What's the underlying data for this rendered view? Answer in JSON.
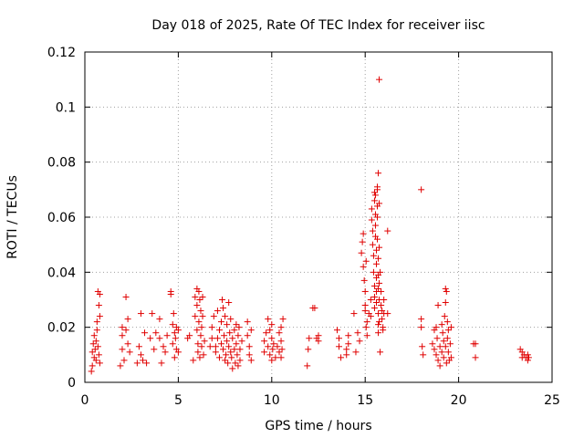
{
  "chart_data": {
    "type": "scatter",
    "title": "Day 018 of 2025, Rate Of TEC Index for receiver iisc",
    "xlabel": "GPS time / hours",
    "ylabel": "ROTI / TECUs",
    "xlim": [
      0,
      25
    ],
    "ylim": [
      0,
      0.12
    ],
    "xticks": [
      0,
      5,
      10,
      15,
      20,
      25
    ],
    "xtick_labels": [
      "0",
      "5",
      "10",
      "15",
      "20",
      "25"
    ],
    "yticks": [
      0,
      0.02,
      0.04,
      0.06,
      0.08,
      0.1,
      0.12
    ],
    "ytick_labels": [
      "0",
      "0.02",
      "0.04",
      "0.06",
      "0.08",
      "0.1",
      "0.12"
    ],
    "grid": true,
    "marker": "+",
    "color": "#e00000",
    "series": [
      {
        "points": [
          [
            0.35,
            0.004
          ],
          [
            0.4,
            0.006
          ],
          [
            0.4,
            0.011
          ],
          [
            0.45,
            0.014
          ],
          [
            0.5,
            0.009
          ],
          [
            0.5,
            0.017
          ],
          [
            0.55,
            0.012
          ],
          [
            0.6,
            0.008
          ],
          [
            0.6,
            0.015
          ],
          [
            0.65,
            0.019
          ],
          [
            0.65,
            0.022
          ],
          [
            0.7,
            0.013
          ],
          [
            0.7,
            0.033
          ],
          [
            0.75,
            0.028
          ],
          [
            0.75,
            0.01
          ],
          [
            0.8,
            0.032
          ],
          [
            0.8,
            0.024
          ],
          [
            0.8,
            0.007
          ],
          [
            1.9,
            0.006
          ],
          [
            2.0,
            0.012
          ],
          [
            2.0,
            0.017
          ],
          [
            2.0,
            0.02
          ],
          [
            2.1,
            0.008
          ],
          [
            2.2,
            0.019
          ],
          [
            2.2,
            0.031
          ],
          [
            2.3,
            0.023
          ],
          [
            2.3,
            0.014
          ],
          [
            2.4,
            0.011
          ],
          [
            2.8,
            0.007
          ],
          [
            2.9,
            0.013
          ],
          [
            3.0,
            0.025
          ],
          [
            3.0,
            0.01
          ],
          [
            3.1,
            0.008
          ],
          [
            3.2,
            0.018
          ],
          [
            3.3,
            0.007
          ],
          [
            3.5,
            0.016
          ],
          [
            3.6,
            0.025
          ],
          [
            3.7,
            0.012
          ],
          [
            3.8,
            0.018
          ],
          [
            4.0,
            0.016
          ],
          [
            4.0,
            0.023
          ],
          [
            4.1,
            0.007
          ],
          [
            4.2,
            0.013
          ],
          [
            4.3,
            0.011
          ],
          [
            4.4,
            0.017
          ],
          [
            4.6,
            0.033
          ],
          [
            4.6,
            0.032
          ],
          [
            4.7,
            0.021
          ],
          [
            4.7,
            0.014
          ],
          [
            4.75,
            0.025
          ],
          [
            4.8,
            0.018
          ],
          [
            4.8,
            0.009
          ],
          [
            4.85,
            0.016
          ],
          [
            4.9,
            0.012
          ],
          [
            4.9,
            0.02
          ],
          [
            5.0,
            0.019
          ],
          [
            5.0,
            0.011
          ],
          [
            5.5,
            0.016
          ],
          [
            5.6,
            0.017
          ],
          [
            5.8,
            0.008
          ],
          [
            5.9,
            0.024
          ],
          [
            5.9,
            0.031
          ],
          [
            6.0,
            0.034
          ],
          [
            6.0,
            0.028
          ],
          [
            6.0,
            0.019
          ],
          [
            6.05,
            0.014
          ],
          [
            6.05,
            0.011
          ],
          [
            6.1,
            0.022
          ],
          [
            6.1,
            0.033
          ],
          [
            6.15,
            0.03
          ],
          [
            6.15,
            0.009
          ],
          [
            6.2,
            0.026
          ],
          [
            6.2,
            0.017
          ],
          [
            6.25,
            0.013
          ],
          [
            6.25,
            0.02
          ],
          [
            6.3,
            0.031
          ],
          [
            6.3,
            0.024
          ],
          [
            6.35,
            0.01
          ],
          [
            6.4,
            0.015
          ],
          [
            6.7,
            0.013
          ],
          [
            6.8,
            0.016
          ],
          [
            6.8,
            0.02
          ],
          [
            6.9,
            0.024
          ],
          [
            7.0,
            0.013
          ],
          [
            7.0,
            0.011
          ],
          [
            7.1,
            0.016
          ],
          [
            7.1,
            0.026
          ],
          [
            7.2,
            0.009
          ],
          [
            7.2,
            0.019
          ],
          [
            7.3,
            0.022
          ],
          [
            7.3,
            0.014
          ],
          [
            7.35,
            0.03
          ],
          [
            7.4,
            0.012
          ],
          [
            7.4,
            0.027
          ],
          [
            7.45,
            0.017
          ],
          [
            7.5,
            0.024
          ],
          [
            7.5,
            0.008
          ],
          [
            7.55,
            0.01
          ],
          [
            7.6,
            0.015
          ],
          [
            7.6,
            0.021
          ],
          [
            7.65,
            0.007
          ],
          [
            7.7,
            0.013
          ],
          [
            7.7,
            0.029
          ],
          [
            7.75,
            0.018
          ],
          [
            7.8,
            0.011
          ],
          [
            7.8,
            0.023
          ],
          [
            7.85,
            0.009
          ],
          [
            7.9,
            0.016
          ],
          [
            7.9,
            0.005
          ],
          [
            8.0,
            0.012
          ],
          [
            8.0,
            0.019
          ],
          [
            8.05,
            0.007
          ],
          [
            8.1,
            0.014
          ],
          [
            8.1,
            0.021
          ],
          [
            8.15,
            0.01
          ],
          [
            8.2,
            0.017
          ],
          [
            8.2,
            0.006
          ],
          [
            8.25,
            0.02
          ],
          [
            8.3,
            0.012
          ],
          [
            8.3,
            0.008
          ],
          [
            8.4,
            0.015
          ],
          [
            8.7,
            0.022
          ],
          [
            8.7,
            0.017
          ],
          [
            8.8,
            0.01
          ],
          [
            8.8,
            0.013
          ],
          [
            8.9,
            0.008
          ],
          [
            8.9,
            0.019
          ],
          [
            9.6,
            0.015
          ],
          [
            9.6,
            0.011
          ],
          [
            9.7,
            0.018
          ],
          [
            9.8,
            0.023
          ],
          [
            9.8,
            0.013
          ],
          [
            9.9,
            0.019
          ],
          [
            9.9,
            0.01
          ],
          [
            10.0,
            0.016
          ],
          [
            10.0,
            0.008
          ],
          [
            10.0,
            0.021
          ],
          [
            10.05,
            0.012
          ],
          [
            10.1,
            0.014
          ],
          [
            10.2,
            0.009
          ],
          [
            10.3,
            0.013
          ],
          [
            10.4,
            0.011
          ],
          [
            10.4,
            0.018
          ],
          [
            10.5,
            0.015
          ],
          [
            10.5,
            0.009
          ],
          [
            10.5,
            0.02
          ],
          [
            10.55,
            0.012
          ],
          [
            10.6,
            0.023
          ],
          [
            11.9,
            0.006
          ],
          [
            11.95,
            0.012
          ],
          [
            12.0,
            0.016
          ],
          [
            12.2,
            0.027
          ],
          [
            12.3,
            0.027
          ],
          [
            12.4,
            0.016
          ],
          [
            12.5,
            0.015
          ],
          [
            12.5,
            0.017
          ],
          [
            13.5,
            0.019
          ],
          [
            13.6,
            0.016
          ],
          [
            13.6,
            0.013
          ],
          [
            13.7,
            0.009
          ],
          [
            14.0,
            0.012
          ],
          [
            14.0,
            0.01
          ],
          [
            14.1,
            0.017
          ],
          [
            14.1,
            0.014
          ],
          [
            14.4,
            0.025
          ],
          [
            14.5,
            0.011
          ],
          [
            14.6,
            0.018
          ],
          [
            14.7,
            0.015
          ],
          [
            14.8,
            0.047
          ],
          [
            14.85,
            0.051
          ],
          [
            14.9,
            0.054
          ],
          [
            14.9,
            0.042
          ],
          [
            14.95,
            0.037
          ],
          [
            15.0,
            0.033
          ],
          [
            15.0,
            0.028
          ],
          [
            15.0,
            0.026
          ],
          [
            15.05,
            0.044
          ],
          [
            15.05,
            0.02
          ],
          [
            15.1,
            0.017
          ],
          [
            15.1,
            0.022
          ],
          [
            15.2,
            0.025
          ],
          [
            15.3,
            0.03
          ],
          [
            15.3,
            0.024
          ],
          [
            15.35,
            0.063
          ],
          [
            15.35,
            0.059
          ],
          [
            15.4,
            0.055
          ],
          [
            15.4,
            0.05
          ],
          [
            15.45,
            0.046
          ],
          [
            15.45,
            0.04
          ],
          [
            15.5,
            0.069
          ],
          [
            15.5,
            0.066
          ],
          [
            15.5,
            0.035
          ],
          [
            15.5,
            0.031
          ],
          [
            15.5,
            0.027
          ],
          [
            15.55,
            0.068
          ],
          [
            15.55,
            0.061
          ],
          [
            15.55,
            0.057
          ],
          [
            15.55,
            0.053
          ],
          [
            15.6,
            0.048
          ],
          [
            15.6,
            0.043
          ],
          [
            15.6,
            0.038
          ],
          [
            15.6,
            0.033
          ],
          [
            15.6,
            0.029
          ],
          [
            15.65,
            0.07
          ],
          [
            15.65,
            0.071
          ],
          [
            15.65,
            0.064
          ],
          [
            15.65,
            0.06
          ],
          [
            15.65,
            0.052
          ],
          [
            15.7,
            0.045
          ],
          [
            15.7,
            0.039
          ],
          [
            15.7,
            0.034
          ],
          [
            15.7,
            0.025
          ],
          [
            15.7,
            0.021
          ],
          [
            15.7,
            0.018
          ],
          [
            15.7,
            0.076
          ],
          [
            15.75,
            0.065
          ],
          [
            15.75,
            0.049
          ],
          [
            15.75,
            0.036
          ],
          [
            15.75,
            0.03
          ],
          [
            15.75,
            0.022
          ],
          [
            15.75,
            0.11
          ],
          [
            15.8,
            0.011
          ],
          [
            15.8,
            0.04
          ],
          [
            15.85,
            0.033
          ],
          [
            15.85,
            0.028
          ],
          [
            15.9,
            0.026
          ],
          [
            15.9,
            0.023
          ],
          [
            15.95,
            0.02
          ],
          [
            15.95,
            0.019
          ],
          [
            16.0,
            0.03
          ],
          [
            16.0,
            0.025
          ],
          [
            16.2,
            0.055
          ],
          [
            16.2,
            0.025
          ],
          [
            18.0,
            0.07
          ],
          [
            18.0,
            0.023
          ],
          [
            18.0,
            0.02
          ],
          [
            18.05,
            0.013
          ],
          [
            18.1,
            0.01
          ],
          [
            18.6,
            0.014
          ],
          [
            18.7,
            0.019
          ],
          [
            18.7,
            0.012
          ],
          [
            18.8,
            0.02
          ],
          [
            18.8,
            0.01
          ],
          [
            18.85,
            0.016
          ],
          [
            18.9,
            0.028
          ],
          [
            18.9,
            0.008
          ],
          [
            19.0,
            0.013
          ],
          [
            19.0,
            0.006
          ],
          [
            19.1,
            0.021
          ],
          [
            19.1,
            0.011
          ],
          [
            19.15,
            0.018
          ],
          [
            19.2,
            0.009
          ],
          [
            19.2,
            0.015
          ],
          [
            19.25,
            0.024
          ],
          [
            19.3,
            0.034
          ],
          [
            19.3,
            0.029
          ],
          [
            19.3,
            0.013
          ],
          [
            19.35,
            0.007
          ],
          [
            19.35,
            0.033
          ],
          [
            19.4,
            0.022
          ],
          [
            19.4,
            0.016
          ],
          [
            19.45,
            0.019
          ],
          [
            19.45,
            0.011
          ],
          [
            19.5,
            0.008
          ],
          [
            19.55,
            0.014
          ],
          [
            19.6,
            0.02
          ],
          [
            19.6,
            0.009
          ],
          [
            20.8,
            0.014
          ],
          [
            20.9,
            0.014
          ],
          [
            20.9,
            0.009
          ],
          [
            23.3,
            0.012
          ],
          [
            23.4,
            0.011
          ],
          [
            23.4,
            0.009
          ],
          [
            23.5,
            0.01
          ],
          [
            23.6,
            0.009
          ],
          [
            23.7,
            0.008
          ],
          [
            23.7,
            0.01
          ],
          [
            23.75,
            0.009
          ]
        ]
      }
    ]
  }
}
